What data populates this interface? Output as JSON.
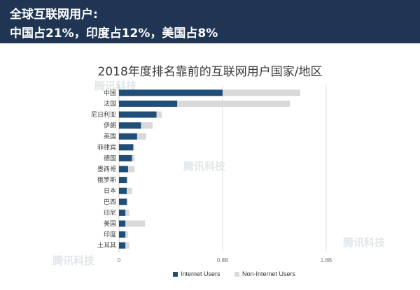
{
  "banner": {
    "line1": "全球互联网用户:",
    "line2": "中国占21%，印度占12%，美国占8%"
  },
  "watermark": "腾讯科技",
  "chart_data": {
    "type": "bar",
    "orientation": "horizontal",
    "stacked": true,
    "title": "2018年度排名靠前的互联网用户国家/地区",
    "categories": [
      "中国",
      "法国",
      "尼日利亚",
      "伊朗",
      "英国",
      "菲律宾",
      "德国",
      "墨西哥",
      "俄罗斯",
      "日本",
      "巴西",
      "印尼",
      "美国",
      "印度",
      "土耳其"
    ],
    "series": [
      {
        "name": "Internet Users",
        "color": "#1f4e79",
        "values": [
          0.8,
          0.45,
          0.29,
          0.17,
          0.14,
          0.11,
          0.1,
          0.07,
          0.06,
          0.06,
          0.06,
          0.05,
          0.05,
          0.05,
          0.05
        ]
      },
      {
        "name": "Non-Internet Users",
        "color": "#d9d9d9",
        "values": [
          0.6,
          0.87,
          0.04,
          0.09,
          0.07,
          0.01,
          0.02,
          0.05,
          0.01,
          0.04,
          0.01,
          0.03,
          0.15,
          0.02,
          0.03
        ]
      }
    ],
    "xticks": [
      "0",
      "0.8B",
      "1.6B"
    ],
    "xlim": [
      0,
      1.6
    ],
    "grid": "vertical",
    "legend_position": "bottom"
  }
}
